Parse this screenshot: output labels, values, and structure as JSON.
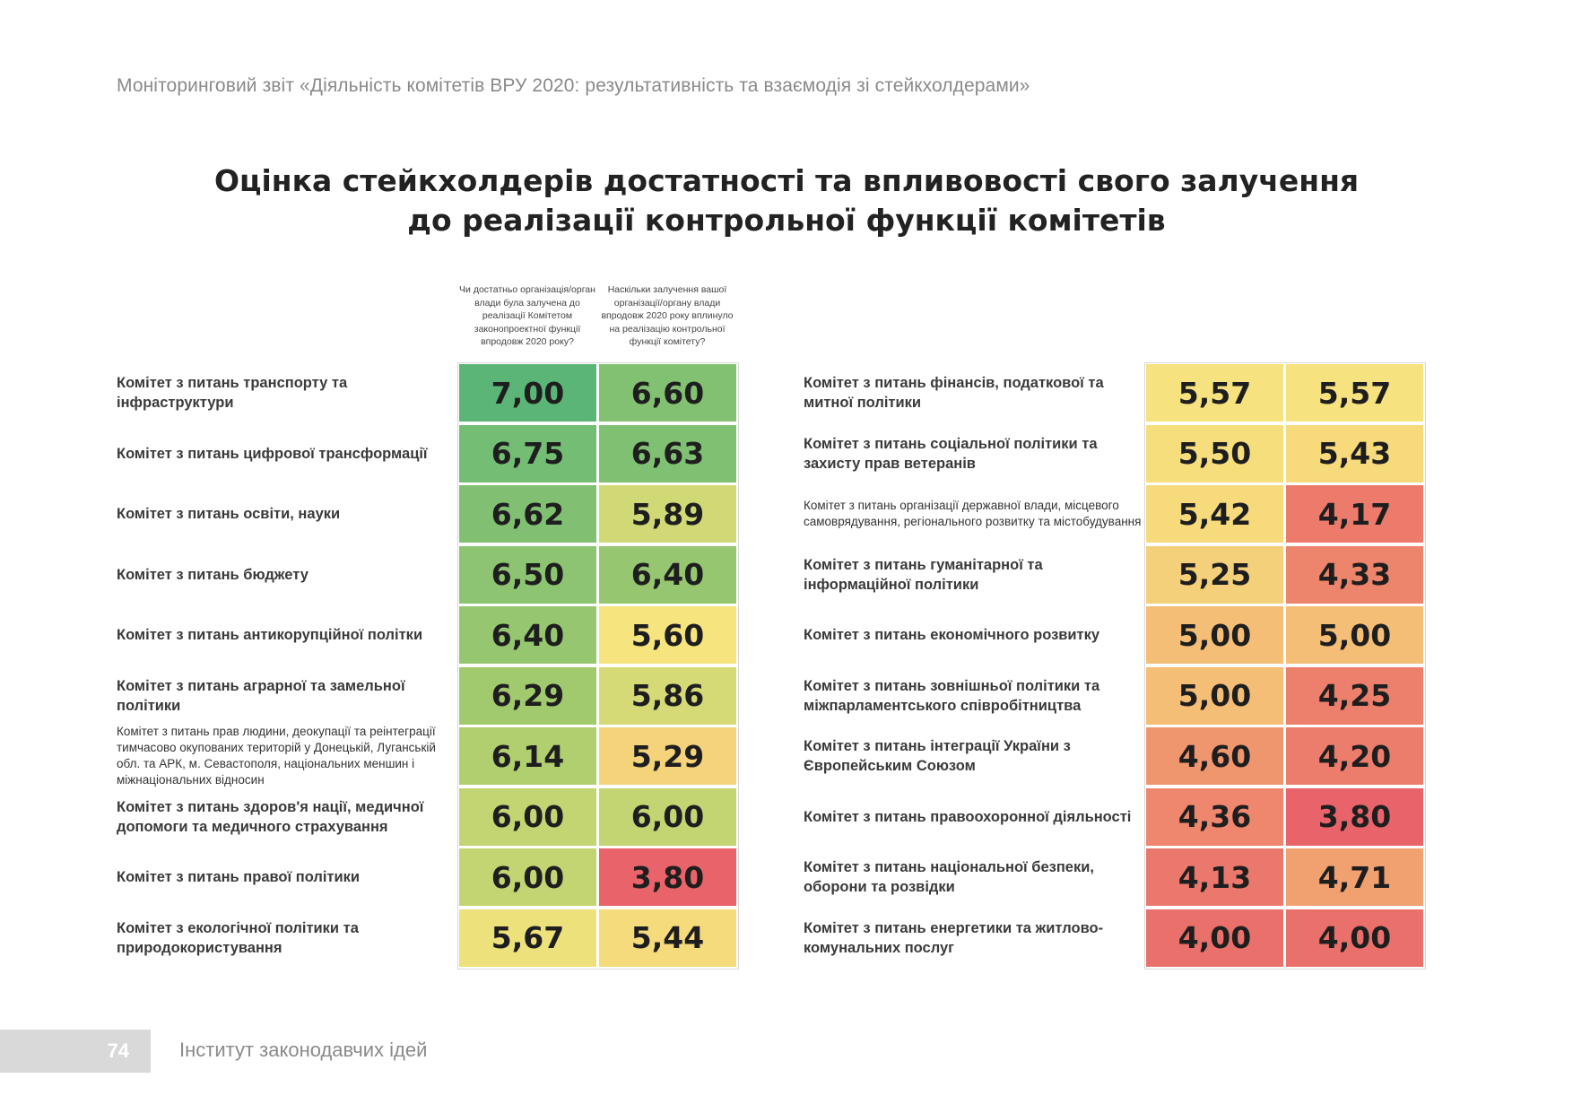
{
  "running_header": "Моніторинговий звіт «Діяльність комітетів ВРУ 2020: результативність та взаємодія зі стейкхолдерами»",
  "title_line1": "Оцінка стейкхолдерів достатності та впливовості свого залучення",
  "title_line2": "до реалізації контрольної функції комітетів",
  "col_header_1": "Чи достатньо організація/орган влади була залучена до реалізації Комітетом законопроектної функції впродовж 2020 року?",
  "col_header_2": "Наскільки залучення вашої організації/органу влади впродовж 2020 року вплинуло на реалізацію контрольної функції комітету?",
  "page_number": "74",
  "footer": "Інститут законодавчих ідей",
  "chart_data": {
    "type": "table",
    "columns": [
      "Чи достатньо організація/орган влади була залучена до реалізації Комітетом законопроектної функції впродовж 2020 року?",
      "Наскільки залучення вашої організації/органу влади впродовж 2020 року вплинуло на реалізацію контрольної функції комітету?"
    ],
    "colors": {
      "scale_high": "#5bb576",
      "scale_mid": "#f6e47e",
      "scale_low": "#e8636a"
    },
    "rows": [
      {
        "committee": "Комітет з питань транспорту та інфраструктури",
        "values": [
          7.0,
          6.6
        ],
        "labels": [
          "7,00",
          "6,60"
        ]
      },
      {
        "committee": "Комітет з питань цифрової трансформації",
        "values": [
          6.75,
          6.63
        ],
        "labels": [
          "6,75",
          "6,63"
        ]
      },
      {
        "committee": "Комітет з питань освіти, науки",
        "values": [
          6.62,
          5.89
        ],
        "labels": [
          "6,62",
          "5,89"
        ]
      },
      {
        "committee": "Комітет з питань бюджету",
        "values": [
          6.5,
          6.4
        ],
        "labels": [
          "6,50",
          "6,40"
        ]
      },
      {
        "committee": "Комітет з питань антикорупційної політки",
        "values": [
          6.4,
          5.6
        ],
        "labels": [
          "6,40",
          "5,60"
        ]
      },
      {
        "committee": "Комітет з питань аграрної та замельної політики",
        "values": [
          6.29,
          5.86
        ],
        "labels": [
          "6,29",
          "5,86"
        ]
      },
      {
        "committee": "Комітет з питань прав людини, деокупації та реінтеграції тимчасово окупованих територій у Донецькій, Луганській обл. та АРК, м. Севастополя, національних меншин і міжнаціональних відносин",
        "values": [
          6.14,
          5.29
        ],
        "labels": [
          "6,14",
          "5,29"
        ],
        "small": true
      },
      {
        "committee": "Комітет з питань здоров'я нації, медичної допомоги та медичного страхування",
        "values": [
          6.0,
          6.0
        ],
        "labels": [
          "6,00",
          "6,00"
        ]
      },
      {
        "committee": "Комітет з питань правої політики",
        "values": [
          6.0,
          3.8
        ],
        "labels": [
          "6,00",
          "3,80"
        ]
      },
      {
        "committee": "Комітет з екологічної політики та природокористування",
        "values": [
          5.67,
          5.44
        ],
        "labels": [
          "5,67",
          "5,44"
        ]
      },
      {
        "committee": "Комітет з питань фінансів, податкової та митної політики",
        "values": [
          5.57,
          5.57
        ],
        "labels": [
          "5,57",
          "5,57"
        ]
      },
      {
        "committee": "Комітет з питань соціальної політики та захисту прав ветеранів",
        "values": [
          5.5,
          5.43
        ],
        "labels": [
          "5,50",
          "5,43"
        ]
      },
      {
        "committee": "Комітет з питань організації державної влади, місцевого самоврядування, регіонального розвитку та містобудування",
        "values": [
          5.42,
          4.17
        ],
        "labels": [
          "5,42",
          "4,17"
        ],
        "small": true
      },
      {
        "committee": "Комітет з питань гуманітарної та інформаційної політики",
        "values": [
          5.25,
          4.33
        ],
        "labels": [
          "5,25",
          "4,33"
        ]
      },
      {
        "committee": "Комітет з питань економічного розвитку",
        "values": [
          5.0,
          5.0
        ],
        "labels": [
          "5,00",
          "5,00"
        ]
      },
      {
        "committee": "Комітет з питань зовнішньої політики та міжпарламентського співробітництва",
        "values": [
          5.0,
          4.25
        ],
        "labels": [
          "5,00",
          "4,25"
        ]
      },
      {
        "committee": "Комітет з питань інтеграції України з Європейським Союзом",
        "values": [
          4.6,
          4.2
        ],
        "labels": [
          "4,60",
          "4,20"
        ]
      },
      {
        "committee": "Комітет з питань правоохоронної діяльності",
        "values": [
          4.36,
          3.8
        ],
        "labels": [
          "4,36",
          "3,80"
        ]
      },
      {
        "committee": "Комітет з питань національної безпеки, оборони та розвідки",
        "values": [
          4.13,
          4.71
        ],
        "labels": [
          "4,13",
          "4,71"
        ]
      },
      {
        "committee": "Комітет з питань енергетики та житлово-комунальних послуг",
        "values": [
          4.0,
          4.0
        ],
        "labels": [
          "4,00",
          "4,00"
        ]
      }
    ]
  }
}
